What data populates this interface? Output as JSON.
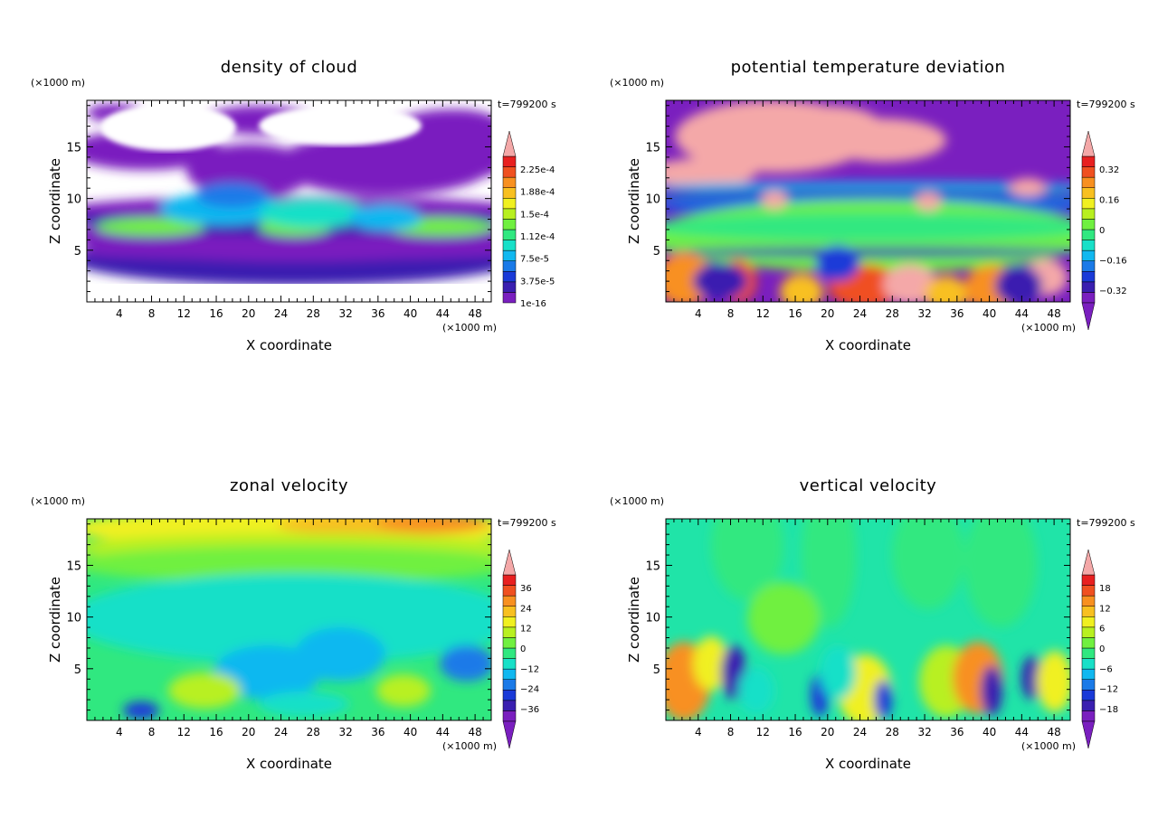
{
  "chart_data": [
    {
      "type": "heatmap",
      "title": "density of cloud",
      "xlabel": "X coordinate",
      "ylabel": "Z coordinate",
      "x_unit": "(×1000 m)",
      "y_unit": "(×1000 m)",
      "time_label": "t=799200 s",
      "xlim": [
        0,
        50
      ],
      "ylim": [
        0,
        19.5
      ],
      "x_ticks": [
        4,
        8,
        12,
        16,
        20,
        24,
        28,
        32,
        36,
        40,
        44,
        48
      ],
      "y_ticks": [
        5,
        10,
        15
      ],
      "colorbar": {
        "labels": [
          "2.25e-4",
          "1.88e-4",
          "1.5e-4",
          "1.12e-4",
          "7.5e-5",
          "3.75e-5",
          "1e-16"
        ],
        "colors": [
          "#7a1fbf",
          "#3a1fb0",
          "#1a3ad8",
          "#1a7ae8",
          "#10b8f0",
          "#18e0c8",
          "#30e880",
          "#70f040",
          "#b8f020",
          "#f0f020",
          "#f8c020",
          "#f89020",
          "#f05020",
          "#e82020",
          "#f4a8a8"
        ],
        "arrow_top": true,
        "arrow_bottom": false
      }
    },
    {
      "type": "heatmap",
      "title": "potential temperature deviation",
      "xlabel": "X coordinate",
      "ylabel": "Z coordinate",
      "x_unit": "(×1000 m)",
      "y_unit": "(×1000 m)",
      "time_label": "t=799200 s",
      "xlim": [
        0,
        50
      ],
      "ylim": [
        0,
        19.5
      ],
      "x_ticks": [
        4,
        8,
        12,
        16,
        20,
        24,
        28,
        32,
        36,
        40,
        44,
        48
      ],
      "y_ticks": [
        5,
        10,
        15
      ],
      "colorbar": {
        "labels": [
          "0.32",
          "0.16",
          "0",
          "−0.16",
          "−0.32"
        ],
        "colors": [
          "#7a1fbf",
          "#3a1fb0",
          "#1a3ad8",
          "#1a7ae8",
          "#10b8f0",
          "#18e0c8",
          "#30e880",
          "#70f040",
          "#b8f020",
          "#f0f020",
          "#f8c020",
          "#f89020",
          "#f05020",
          "#e82020",
          "#f4a8a8"
        ],
        "arrow_top": true,
        "arrow_bottom": true
      }
    },
    {
      "type": "heatmap",
      "title": "zonal velocity",
      "xlabel": "X coordinate",
      "ylabel": "Z coordinate",
      "x_unit": "(×1000 m)",
      "y_unit": "(×1000 m)",
      "time_label": "t=799200 s",
      "xlim": [
        0,
        50
      ],
      "ylim": [
        0,
        19.5
      ],
      "x_ticks": [
        4,
        8,
        12,
        16,
        20,
        24,
        28,
        32,
        36,
        40,
        44,
        48
      ],
      "y_ticks": [
        5,
        10,
        15
      ],
      "colorbar": {
        "labels": [
          "36",
          "24",
          "12",
          "0",
          "−12",
          "−24",
          "−36"
        ],
        "colors": [
          "#7a1fbf",
          "#3a1fb0",
          "#1a3ad8",
          "#1a7ae8",
          "#10b8f0",
          "#18e0c8",
          "#30e880",
          "#70f040",
          "#b8f020",
          "#f0f020",
          "#f8c020",
          "#f89020",
          "#f05020",
          "#e82020",
          "#f4a8a8"
        ],
        "arrow_top": true,
        "arrow_bottom": true
      }
    },
    {
      "type": "heatmap",
      "title": "vertical velocity",
      "xlabel": "X coordinate",
      "ylabel": "Z coordinate",
      "x_unit": "(×1000 m)",
      "y_unit": "(×1000 m)",
      "time_label": "t=799200 s",
      "xlim": [
        0,
        50
      ],
      "ylim": [
        0,
        19.5
      ],
      "x_ticks": [
        4,
        8,
        12,
        16,
        20,
        24,
        28,
        32,
        36,
        40,
        44,
        48
      ],
      "y_ticks": [
        5,
        10,
        15
      ],
      "colorbar": {
        "labels": [
          "18",
          "12",
          "6",
          "0",
          "−6",
          "−12",
          "−18"
        ],
        "colors": [
          "#7a1fbf",
          "#3a1fb0",
          "#1a3ad8",
          "#1a7ae8",
          "#10b8f0",
          "#18e0c8",
          "#30e880",
          "#70f040",
          "#b8f020",
          "#f0f020",
          "#f8c020",
          "#f89020",
          "#f05020",
          "#e82020",
          "#f4a8a8"
        ],
        "arrow_top": true,
        "arrow_bottom": true
      }
    }
  ]
}
